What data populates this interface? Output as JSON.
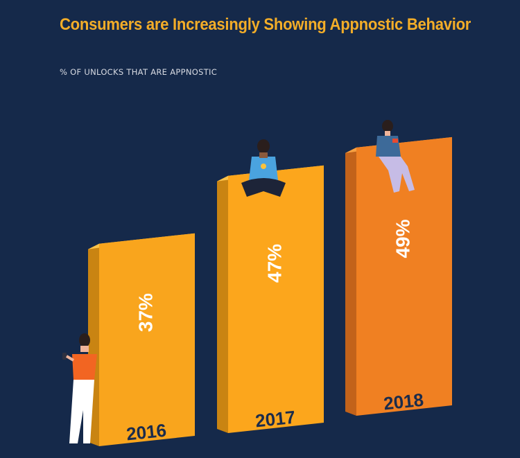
{
  "header": {
    "title": "Consumers are Increasingly Showing Appnostic Behavior",
    "subtitle": "% OF UNLOCKS THAT ARE APPNOSTIC"
  },
  "colors": {
    "background": "#15294a",
    "title": "#f3ad28",
    "bar_front": [
      "#f9a51d",
      "#fca61c",
      "#f08022"
    ],
    "bar_top": [
      "#fcc34a",
      "#fcc34a",
      "#f7a041"
    ],
    "bar_side": [
      "#c98412",
      "#c98412",
      "#c2621a"
    ]
  },
  "chart_data": {
    "type": "bar",
    "title": "Consumers are Increasingly Showing Appnostic Behavior",
    "subtitle": "% OF UNLOCKS THAT ARE APPNOSTIC",
    "categories": [
      "2016",
      "2017",
      "2018"
    ],
    "values": [
      37,
      47,
      49
    ],
    "value_labels": [
      "37%",
      "47%",
      "49%"
    ],
    "xlabel": "",
    "ylabel": "% of unlocks that are appnostic",
    "ylim": [
      0,
      50
    ],
    "grid": false,
    "legend": "none"
  }
}
